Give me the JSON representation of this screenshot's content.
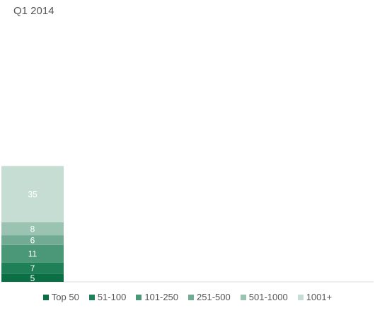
{
  "chart_data": {
    "type": "bar",
    "stacked": true,
    "title": "Q1 2014",
    "categories": [
      ""
    ],
    "series": [
      {
        "name": "Top 50",
        "values": [
          5
        ],
        "color": "#0b6e45"
      },
      {
        "name": "51-100",
        "values": [
          7
        ],
        "color": "#1f7f57"
      },
      {
        "name": "101-250",
        "values": [
          11
        ],
        "color": "#4a9878"
      },
      {
        "name": "251-500",
        "values": [
          6
        ],
        "color": "#72ab93"
      },
      {
        "name": "501-1000",
        "values": [
          8
        ],
        "color": "#9ac3b1"
      },
      {
        "name": "1001+",
        "values": [
          35
        ],
        "color": "#c5ddd2"
      }
    ],
    "ylim": [
      0,
      162
    ],
    "grid": false,
    "legend_position": "bottom"
  }
}
